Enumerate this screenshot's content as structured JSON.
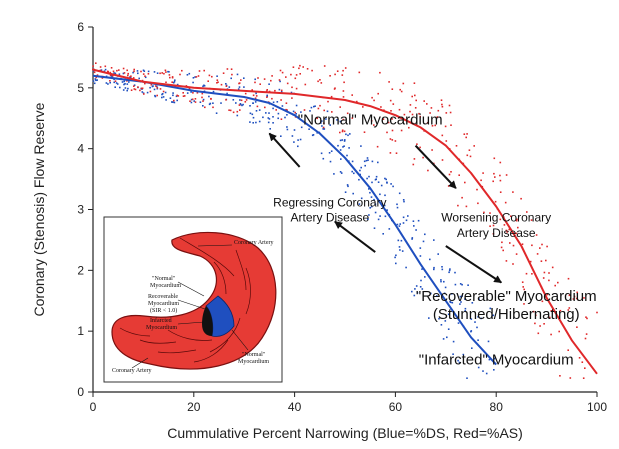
{
  "chart_data": {
    "type": "scatter",
    "title": "",
    "xlabel": "Cummulative Percent Narrowing (Blue=%DS, Red=%AS)",
    "ylabel": "Coronary (Stenosis) Flow Reserve",
    "xlim": [
      0,
      100
    ],
    "ylim": [
      0,
      6
    ],
    "x_ticks": [
      "0",
      "20",
      "40",
      "60",
      "80",
      "100"
    ],
    "y_ticks": [
      "0",
      "1",
      "2",
      "3",
      "4",
      "5",
      "6"
    ],
    "grid": false,
    "colors": {
      "blue": "#1f4fbf",
      "red": "#e0282a"
    },
    "series": [
      {
        "color": "blue",
        "x": [
          0,
          10,
          20,
          30,
          35,
          40,
          45,
          50,
          55,
          60,
          65,
          70,
          75,
          80
        ],
        "y": [
          5.2,
          5.1,
          4.95,
          4.85,
          4.75,
          4.55,
          4.25,
          3.85,
          3.35,
          2.75,
          2.1,
          1.5,
          0.9,
          0.45
        ]
      },
      {
        "color": "red",
        "x": [
          0,
          10,
          20,
          30,
          40,
          50,
          55,
          60,
          65,
          70,
          75,
          80,
          85,
          90,
          95,
          100
        ],
        "y": [
          5.3,
          5.1,
          5.0,
          4.95,
          4.9,
          4.8,
          4.7,
          4.55,
          4.35,
          4.05,
          3.6,
          3.05,
          2.4,
          1.55,
          0.85,
          0.3
        ]
      }
    ],
    "annotations": [
      {
        "text": "\"Normal\" Myocardium",
        "x": 55,
        "y": 4.4
      },
      {
        "text": "Regressing Coronary",
        "x": 47,
        "y": 3.05
      },
      {
        "text": "Artery Disease",
        "x": 47,
        "y": 2.8
      },
      {
        "text": "Worsening Coronary",
        "x": 80,
        "y": 2.8
      },
      {
        "text": "Artery Disease",
        "x": 80,
        "y": 2.55
      },
      {
        "text": "\"Recoverable\" Myocardium",
        "x": 82,
        "y": 1.5
      },
      {
        "text": "(Stunned/Hibernating)",
        "x": 82,
        "y": 1.2
      },
      {
        "text": "\"Infarcted\" Myocardium",
        "x": 80,
        "y": 0.45
      }
    ],
    "arrows": [
      {
        "from": [
          41,
          3.7
        ],
        "to": [
          35,
          4.25
        ]
      },
      {
        "from": [
          56,
          2.3
        ],
        "to": [
          48,
          2.8
        ]
      },
      {
        "from": [
          64,
          4.05
        ],
        "to": [
          72,
          3.35
        ]
      },
      {
        "from": [
          70,
          2.4
        ],
        "to": [
          81,
          1.8
        ]
      }
    ]
  },
  "inset": {
    "labels": {
      "coronary_artery_top": "Coronary Artery",
      "normal_myocardium_1": "\"Normal\"",
      "normal_myocardium_2": "Myocardium",
      "recoverable_1": "Recoverable",
      "recoverable_2": "Myocardium",
      "recoverable_3": "(SIR < 1.0)",
      "infarcted_1": "Infarcted",
      "infarcted_2": "Myocardium",
      "normal_right_1": "\"Normal\"",
      "normal_right_2": "Myocardium",
      "coronary_artery_bottom": "Coronary Artery"
    }
  }
}
